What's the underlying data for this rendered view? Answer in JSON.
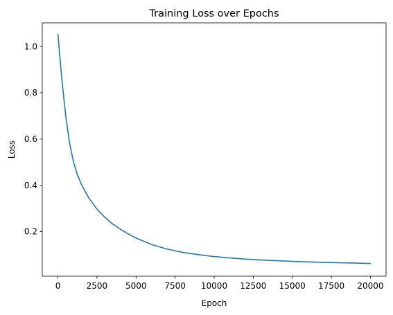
{
  "chart_data": {
    "type": "line",
    "title": "Training Loss over Epochs",
    "xlabel": "Epoch",
    "ylabel": "Loss",
    "xlim": [
      -1000,
      21000
    ],
    "ylim": [
      0.007,
      1.102
    ],
    "x_ticks": [
      0,
      2500,
      5000,
      7500,
      10000,
      12500,
      15000,
      17500,
      20000
    ],
    "x_tick_labels": [
      "0",
      "2500",
      "5000",
      "7500",
      "10000",
      "12500",
      "15000",
      "17500",
      "20000"
    ],
    "y_ticks": [
      0.2,
      0.4,
      0.6,
      0.8,
      1.0
    ],
    "y_tick_labels": [
      "0.2",
      "0.4",
      "0.6",
      "0.8",
      "1.0"
    ],
    "grid": false,
    "series": [
      {
        "color": "#1f77b4",
        "x": [
          0,
          250,
          500,
          750,
          1000,
          1250,
          1500,
          1750,
          2000,
          2500,
          3000,
          3500,
          4000,
          4500,
          5000,
          6000,
          7000,
          8000,
          9000,
          10000,
          11000,
          12000,
          13000,
          14000,
          15000,
          16000,
          17000,
          18000,
          19000,
          20000
        ],
        "y": [
          1.053,
          0.86,
          0.7,
          0.58,
          0.5,
          0.445,
          0.405,
          0.372,
          0.343,
          0.297,
          0.262,
          0.233,
          0.21,
          0.19,
          0.172,
          0.144,
          0.124,
          0.11,
          0.1,
          0.092,
          0.086,
          0.081,
          0.077,
          0.074,
          0.071,
          0.069,
          0.067,
          0.065,
          0.064,
          0.062
        ]
      }
    ]
  }
}
